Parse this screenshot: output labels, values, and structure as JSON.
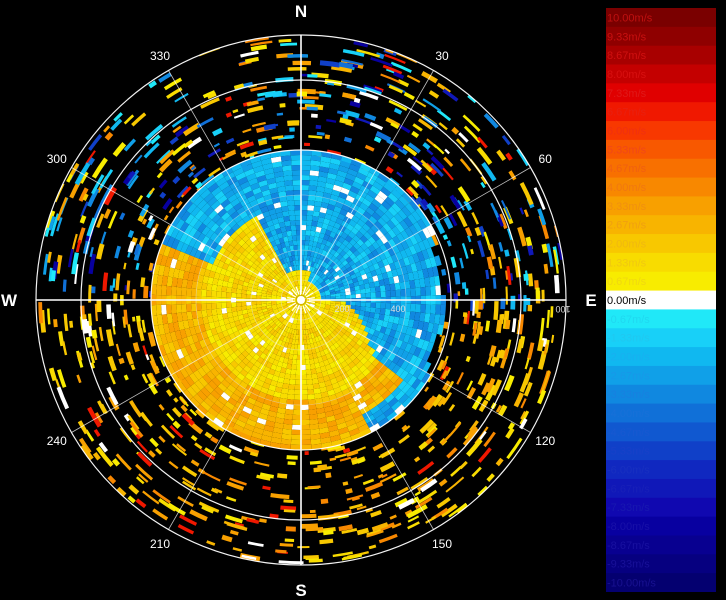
{
  "radar": {
    "cardinals": {
      "north": "N",
      "east": "E",
      "south": "S",
      "west": "W"
    },
    "azimuth_labels": [
      {
        "deg": 30,
        "label": "30"
      },
      {
        "deg": 60,
        "label": "60"
      },
      {
        "deg": 120,
        "label": "120"
      },
      {
        "deg": 150,
        "label": "150"
      },
      {
        "deg": 210,
        "label": "210"
      },
      {
        "deg": 240,
        "label": "240"
      },
      {
        "deg": 300,
        "label": "300"
      },
      {
        "deg": 330,
        "label": "330"
      }
    ],
    "range_labels": [
      "200",
      "400",
      "100"
    ],
    "colors": {
      "background": "#000000",
      "outbound": "#e8b020",
      "inbound": "#38aee0",
      "grid": "#ffffff"
    }
  },
  "legend": {
    "items": [
      {
        "label": "10.00m/s",
        "color": "#7a0000",
        "text": "#c01010"
      },
      {
        "label": "9.33m/s",
        "color": "#8f0000",
        "text": "#c81010"
      },
      {
        "label": "8.67m/s",
        "color": "#a80000",
        "text": "#d01010"
      },
      {
        "label": "8.00m/s",
        "color": "#c40000",
        "text": "#d81010"
      },
      {
        "label": "7.33m/s",
        "color": "#e00000",
        "text": "#e01818"
      },
      {
        "label": "6.67m/s",
        "color": "#f01800",
        "text": "#e82010"
      },
      {
        "label": "6.00m/s",
        "color": "#f83800",
        "text": "#f03010"
      },
      {
        "label": "5.33m/s",
        "color": "#f85800",
        "text": "#f04818"
      },
      {
        "label": "4.67m/s",
        "color": "#f87000",
        "text": "#f06010"
      },
      {
        "label": "4.00m/s",
        "color": "#f88800",
        "text": "#f07810"
      },
      {
        "label": "3.33m/s",
        "color": "#f8a000",
        "text": "#f09010"
      },
      {
        "label": "2.67m/s",
        "color": "#f8b400",
        "text": "#f0a010"
      },
      {
        "label": "2.00m/s",
        "color": "#f8c800",
        "text": "#f0b810"
      },
      {
        "label": "1.33m/s",
        "color": "#f8dc00",
        "text": "#f0c810"
      },
      {
        "label": "0.67m/s",
        "color": "#f8ec00",
        "text": "#f0d810"
      },
      {
        "label": "0.00m/s",
        "color": "#ffffff",
        "text": "#ffffff"
      },
      {
        "label": "-0.67m/s",
        "color": "#20e8f8",
        "text": "#20d8f0"
      },
      {
        "label": "-1.33m/s",
        "color": "#18d0f8",
        "text": "#20c8f0"
      },
      {
        "label": "-2.00m/s",
        "color": "#10b8f0",
        "text": "#18b0f0"
      },
      {
        "label": "-2.67m/s",
        "color": "#10a0e8",
        "text": "#1898e8"
      },
      {
        "label": "-3.33m/s",
        "color": "#1088e0",
        "text": "#1880e0"
      },
      {
        "label": "-4.00m/s",
        "color": "#1070d8",
        "text": "#1870d8"
      },
      {
        "label": "-4.67m/s",
        "color": "#1058d0",
        "text": "#1858d0"
      },
      {
        "label": "-5.33m/s",
        "color": "#1040c8",
        "text": "#1840c8"
      },
      {
        "label": "-6.00m/s",
        "color": "#1028c0",
        "text": "#1830c0"
      },
      {
        "label": "-6.67m/s",
        "color": "#1018b8",
        "text": "#1820b8"
      },
      {
        "label": "-7.33m/s",
        "color": "#1008b0",
        "text": "#1818b0"
      },
      {
        "label": "-8.00m/s",
        "color": "#0800a0",
        "text": "#1810a8"
      },
      {
        "label": "-8.67m/s",
        "color": "#080090",
        "text": "#1810a0"
      },
      {
        "label": "-9.33m/s",
        "color": "#060080",
        "text": "#181098"
      },
      {
        "label": "-10.00m/s",
        "color": "#040070",
        "text": "#181090"
      }
    ]
  }
}
